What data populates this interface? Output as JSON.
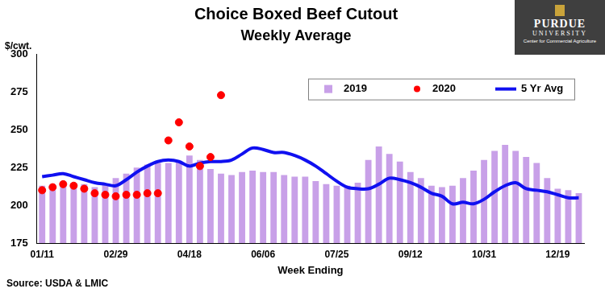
{
  "chart_data": {
    "type": "bar",
    "title": "Choice Boxed Beef Cutout",
    "subtitle": "Weekly Average",
    "y_label": "$/cwt.",
    "x_label": "Week Ending",
    "source": "Source: USDA & LMIC",
    "categories": [
      "01/11",
      null,
      null,
      null,
      null,
      null,
      null,
      "02/29",
      null,
      null,
      null,
      null,
      null,
      null,
      "04/18",
      null,
      null,
      null,
      null,
      null,
      null,
      "06/06",
      null,
      null,
      null,
      null,
      null,
      null,
      "07/25",
      null,
      null,
      null,
      null,
      null,
      null,
      "09/12",
      null,
      null,
      null,
      null,
      null,
      null,
      "10/31",
      null,
      null,
      null,
      null,
      null,
      null,
      "12/19",
      null,
      null
    ],
    "series": [
      {
        "name": "2019",
        "type": "bar",
        "color": "#c8a0e8",
        "values": [
          213,
          214,
          216,
          215,
          214,
          212,
          214,
          218,
          221,
          225,
          227,
          228,
          228,
          229,
          233,
          230,
          224,
          221,
          220,
          222,
          223,
          222,
          222,
          220,
          219,
          219,
          216,
          214,
          213,
          213,
          215,
          230,
          239,
          234,
          229,
          222,
          218,
          213,
          212,
          213,
          218,
          223,
          230,
          236,
          240,
          236,
          232,
          228,
          218,
          211,
          210,
          208
        ]
      },
      {
        "name": "2020",
        "type": "scatter",
        "marker": "circle",
        "color": "#ff0000",
        "values": [
          210,
          212,
          214,
          213,
          211,
          208,
          207,
          206,
          207,
          207,
          208,
          208,
          243,
          255,
          239,
          226,
          232,
          273,
          null,
          null,
          null,
          null,
          null,
          null,
          null,
          null,
          null,
          null,
          null,
          null,
          null,
          null,
          null,
          null,
          null,
          null,
          null,
          null,
          null,
          null,
          null,
          null,
          null,
          null,
          null,
          null,
          null,
          null,
          null,
          null,
          null,
          null
        ]
      },
      {
        "name": "5 Yr Avg",
        "type": "line",
        "line_style": "solid",
        "color": "#1010f0",
        "values": [
          219,
          220,
          221,
          219,
          217,
          215,
          214,
          213,
          217,
          222,
          226,
          229,
          230,
          229,
          226,
          228,
          229,
          229,
          230,
          234,
          238,
          237,
          235,
          235,
          233,
          230,
          226,
          221,
          216,
          212,
          211,
          211,
          214,
          218,
          217,
          215,
          212,
          208,
          206,
          201,
          202,
          201,
          204,
          209,
          213,
          215,
          211,
          210,
          209,
          207,
          205,
          205
        ]
      }
    ],
    "ylim": [
      175,
      300
    ],
    "yticks": [
      175,
      200,
      225,
      250,
      275,
      300
    ],
    "grid": false,
    "legend": "upper right"
  },
  "logo": {
    "name": "PURDUE",
    "line2": "UNIVERSITY",
    "caption": "Center for Commercial Agriculture"
  }
}
